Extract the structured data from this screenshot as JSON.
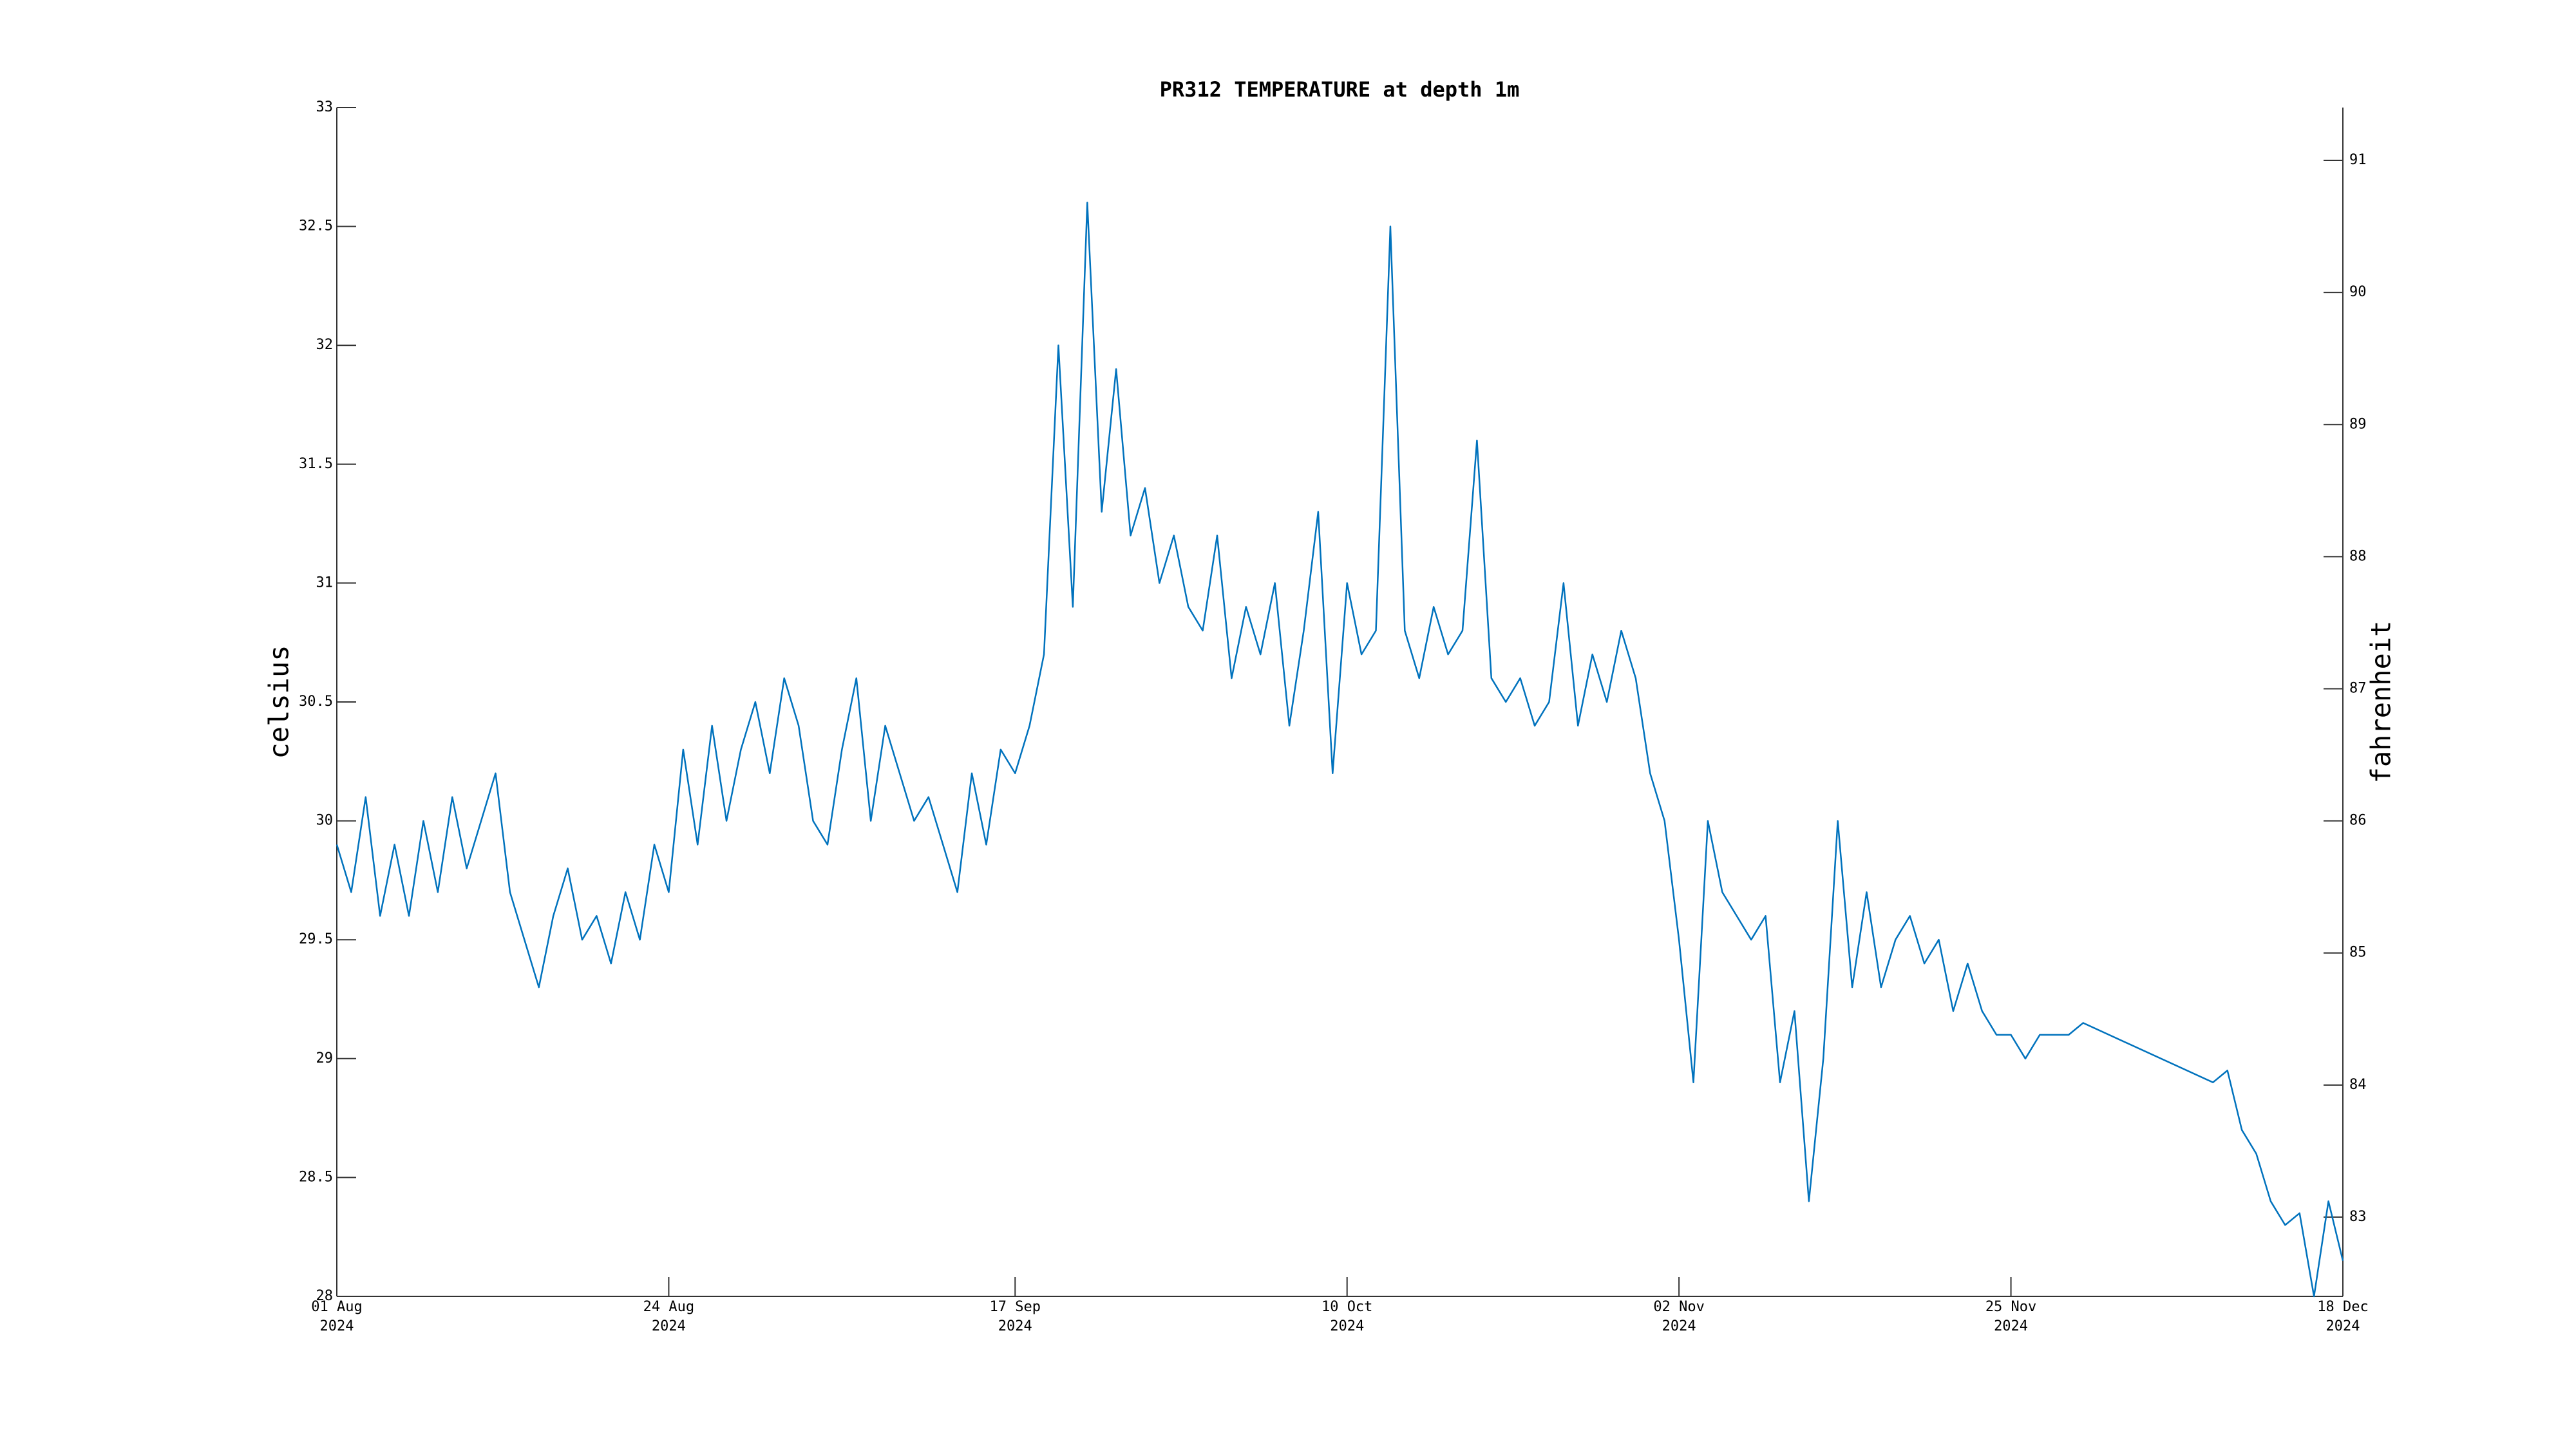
{
  "chart_data": {
    "type": "line",
    "title": "PR312 TEMPERATURE at depth 1m",
    "ylabel": "celsius",
    "y2label": "fahrenheit",
    "xlim": [
      "2024-08-01",
      "2024-12-18"
    ],
    "xticks": [
      {
        "value": "2024-08-01",
        "label": "01 Aug\n2024"
      },
      {
        "value": "2024-08-24",
        "label": "24 Aug\n2024"
      },
      {
        "value": "2024-09-17",
        "label": "17 Sep\n2024"
      },
      {
        "value": "2024-10-10",
        "label": "10 Oct\n2024"
      },
      {
        "value": "2024-11-02",
        "label": "02 Nov\n2024"
      },
      {
        "value": "2024-11-25",
        "label": "25 Nov\n2024"
      },
      {
        "value": "2024-12-18",
        "label": "18 Dec\n2024"
      }
    ],
    "ylim": [
      28,
      33
    ],
    "yticks": [
      28,
      28.5,
      29,
      29.5,
      30,
      30.5,
      31,
      31.5,
      32,
      32.5,
      33
    ],
    "y2lim": [
      82.4,
      91.4
    ],
    "y2ticks": [
      83,
      84,
      85,
      86,
      87,
      88,
      89,
      90,
      91
    ],
    "x": [
      "2024-08-01",
      "2024-08-02",
      "2024-08-03",
      "2024-08-04",
      "2024-08-05",
      "2024-08-06",
      "2024-08-07",
      "2024-08-08",
      "2024-08-09",
      "2024-08-10",
      "2024-08-11",
      "2024-08-12",
      "2024-08-13",
      "2024-08-14",
      "2024-08-15",
      "2024-08-16",
      "2024-08-17",
      "2024-08-18",
      "2024-08-19",
      "2024-08-20",
      "2024-08-21",
      "2024-08-22",
      "2024-08-23",
      "2024-08-24",
      "2024-08-25",
      "2024-08-26",
      "2024-08-27",
      "2024-08-28",
      "2024-08-29",
      "2024-08-30",
      "2024-08-31",
      "2024-09-01",
      "2024-09-02",
      "2024-09-03",
      "2024-09-04",
      "2024-09-05",
      "2024-09-06",
      "2024-09-07",
      "2024-09-08",
      "2024-09-09",
      "2024-09-10",
      "2024-09-11",
      "2024-09-12",
      "2024-09-13",
      "2024-09-14",
      "2024-09-15",
      "2024-09-16",
      "2024-09-17",
      "2024-09-18",
      "2024-09-19",
      "2024-09-20",
      "2024-09-21",
      "2024-09-22",
      "2024-09-23",
      "2024-09-24",
      "2024-09-25",
      "2024-09-26",
      "2024-09-27",
      "2024-09-28",
      "2024-09-29",
      "2024-09-30",
      "2024-10-01",
      "2024-10-02",
      "2024-10-03",
      "2024-10-04",
      "2024-10-05",
      "2024-10-06",
      "2024-10-07",
      "2024-10-08",
      "2024-10-09",
      "2024-10-10",
      "2024-10-11",
      "2024-10-12",
      "2024-10-13",
      "2024-10-14",
      "2024-10-15",
      "2024-10-16",
      "2024-10-17",
      "2024-10-18",
      "2024-10-19",
      "2024-10-20",
      "2024-10-21",
      "2024-10-22",
      "2024-10-23",
      "2024-10-24",
      "2024-10-25",
      "2024-10-26",
      "2024-10-27",
      "2024-10-28",
      "2024-10-29",
      "2024-10-30",
      "2024-10-31",
      "2024-11-01",
      "2024-11-02",
      "2024-11-03",
      "2024-11-04",
      "2024-11-05",
      "2024-11-06",
      "2024-11-07",
      "2024-11-08",
      "2024-11-09",
      "2024-11-10",
      "2024-11-11",
      "2024-11-12",
      "2024-11-13",
      "2024-11-14",
      "2024-11-15",
      "2024-11-16",
      "2024-11-17",
      "2024-11-18",
      "2024-11-19",
      "2024-11-20",
      "2024-11-21",
      "2024-11-22",
      "2024-11-23",
      "2024-11-24",
      "2024-11-25",
      "2024-11-26",
      "2024-11-27",
      "2024-11-28",
      "2024-11-29",
      "2024-11-30",
      "2024-12-09",
      "2024-12-10",
      "2024-12-11",
      "2024-12-12",
      "2024-12-13",
      "2024-12-14",
      "2024-12-15",
      "2024-12-16",
      "2024-12-17",
      "2024-12-18"
    ],
    "series": [
      {
        "color": "#0072bd",
        "values": [
          29.9,
          29.7,
          30.1,
          29.6,
          29.9,
          29.6,
          30.0,
          29.7,
          30.1,
          29.8,
          30.0,
          30.2,
          29.7,
          29.5,
          29.3,
          29.6,
          29.8,
          29.5,
          29.6,
          29.4,
          29.7,
          29.5,
          29.9,
          29.7,
          30.3,
          29.9,
          30.4,
          30.0,
          30.3,
          30.5,
          30.2,
          30.6,
          30.4,
          30.0,
          29.9,
          30.3,
          30.6,
          30.0,
          30.4,
          30.2,
          30.0,
          30.1,
          29.9,
          29.7,
          30.2,
          29.9,
          30.3,
          30.2,
          30.4,
          30.7,
          32.0,
          30.9,
          32.6,
          31.3,
          31.9,
          31.2,
          31.4,
          31.0,
          31.2,
          30.9,
          30.8,
          31.2,
          30.6,
          30.9,
          30.7,
          31.0,
          30.4,
          30.8,
          31.3,
          30.2,
          31.0,
          30.7,
          30.8,
          32.5,
          30.8,
          30.6,
          30.9,
          30.7,
          30.8,
          31.6,
          30.6,
          30.5,
          30.6,
          30.4,
          30.5,
          31.0,
          30.4,
          30.7,
          30.5,
          30.8,
          30.6,
          30.2,
          30.0,
          29.5,
          28.9,
          30.0,
          29.7,
          29.6,
          29.5,
          29.6,
          28.9,
          29.2,
          28.4,
          29.0,
          30.0,
          29.3,
          29.7,
          29.3,
          29.5,
          29.6,
          29.4,
          29.5,
          29.2,
          29.4,
          29.2,
          29.1,
          29.1,
          29.0,
          29.1,
          29.1,
          29.1,
          29.15,
          28.9,
          28.95,
          28.7,
          28.6,
          28.4,
          28.3,
          28.35,
          28.0,
          28.4,
          28.15
        ]
      }
    ]
  }
}
